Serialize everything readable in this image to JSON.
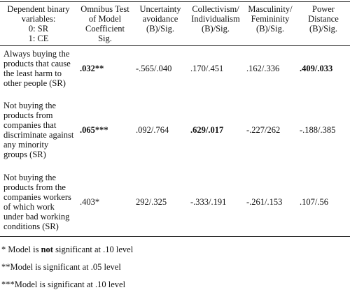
{
  "table": {
    "header": [
      [
        "Dependent binary variables:",
        "0: SR",
        "1: CE"
      ],
      "Omnibus Test of Model Coefficient Sig.",
      "Uncertainty avoidance (B)/Sig.",
      "Collectivism/ Individualism (B)/Sig.",
      "Masculinity/ Femininity (B)/Sig.",
      "Power Distance (B)/Sig."
    ],
    "rows": [
      [
        "Always buying the products that cause the least harm to other people (SR)",
        ".032**",
        "-.565/.040",
        ".170/.451",
        ".162/.336",
        ".409/.033"
      ],
      [
        "Not buying the products from companies that discriminate against any minority groups (SR)",
        ".065***",
        ".092/.764",
        ".629/.017",
        "-.227/262",
        "-.188/.385"
      ],
      [
        "Not buying the products from the companies workers of which work under bad working conditions (SR)",
        ".403*",
        "292/.325",
        "-.333/.191",
        "-.261/.153",
        ".107/.56"
      ]
    ]
  },
  "notes": [
    [
      "* Model is ",
      "not",
      " significant at .10 level"
    ],
    "**Model is significant at .05 level",
    "***Model is significant at .10 level"
  ]
}
